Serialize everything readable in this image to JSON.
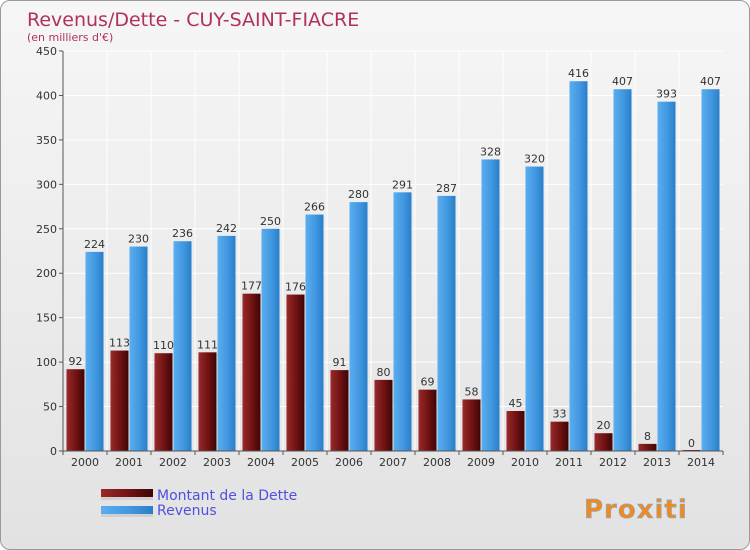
{
  "chart_data": {
    "type": "bar",
    "title": "Revenus/Dette - CUY-SAINT-FIACRE",
    "subtitle": "(en milliers d'€)",
    "categories": [
      "2000",
      "2001",
      "2002",
      "2003",
      "2004",
      "2005",
      "2006",
      "2007",
      "2008",
      "2009",
      "2010",
      "2011",
      "2012",
      "2013",
      "2014"
    ],
    "series": [
      {
        "name": "Montant de la Dette",
        "color": "#7a1a1a",
        "values": [
          92,
          113,
          110,
          111,
          177,
          176,
          91,
          80,
          69,
          58,
          45,
          33,
          20,
          8,
          0
        ]
      },
      {
        "name": "Revenus",
        "color": "#4aa0e6",
        "values": [
          224,
          230,
          236,
          242,
          250,
          266,
          280,
          291,
          287,
          328,
          320,
          416,
          407,
          393,
          407
        ]
      }
    ],
    "ylim": [
      0,
      450
    ],
    "yticks": [
      0,
      50,
      100,
      150,
      200,
      250,
      300,
      350,
      400,
      450
    ],
    "grid": true,
    "legend_position": "bottom-left"
  },
  "watermark": "Proxiti"
}
